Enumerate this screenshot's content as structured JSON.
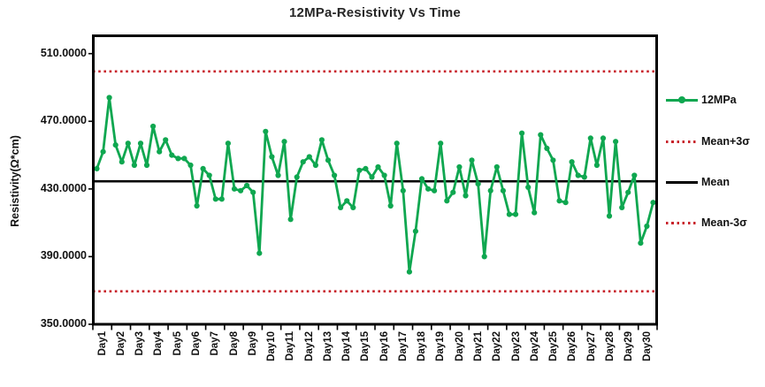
{
  "title": "12MPa-Resistivity Vs Time",
  "y_axis": {
    "label": "Resistivity(Ω*cm)",
    "tick_labels": [
      "510.0000",
      "470.0000",
      "430.0000",
      "390.0000",
      "350.0000"
    ]
  },
  "x_axis": {
    "labels": [
      "Day1",
      "Day2",
      "Day3",
      "Day4",
      "Day5",
      "Day6",
      "Day7",
      "Day8",
      "Day9",
      "Day10",
      "Day11",
      "Day12",
      "Day13",
      "Day14",
      "Day15",
      "Day16",
      "Day17",
      "Day18",
      "Day19",
      "Day20",
      "Day21",
      "Day22",
      "Day23",
      "Day24",
      "Day25",
      "Day26",
      "Day27",
      "Day28",
      "Day29",
      "Day30"
    ]
  },
  "legend": [
    {
      "id": "series",
      "label": "12MPa",
      "type": "line-marker",
      "color": "#0fa750"
    },
    {
      "id": "upper",
      "label": "Mean+3σ",
      "type": "dotted",
      "color": "#c8232b"
    },
    {
      "id": "mean",
      "label": "Mean",
      "type": "solid",
      "color": "#000000"
    },
    {
      "id": "lower",
      "label": "Mean-3σ",
      "type": "dotted",
      "color": "#c8232b"
    }
  ],
  "colors": {
    "series_green": "#0fa750",
    "control_red": "#c8232b",
    "mean_black": "#000000",
    "axis_black": "#000000"
  },
  "chart_data": {
    "type": "line",
    "title": "12MPa-Resistivity Vs Time",
    "xlabel": "",
    "ylabel": "Resistivity(Ω*cm)",
    "ylim": [
      350,
      521
    ],
    "y_ticks": [
      350,
      390,
      430,
      470,
      510
    ],
    "grid": false,
    "legend_position": "right",
    "categories": [
      "Day1",
      "Day2",
      "Day3",
      "Day4",
      "Day5",
      "Day6",
      "Day7",
      "Day8",
      "Day9",
      "Day10",
      "Day11",
      "Day12",
      "Day13",
      "Day14",
      "Day15",
      "Day16",
      "Day17",
      "Day18",
      "Day19",
      "Day20",
      "Day21",
      "Day22",
      "Day23",
      "Day24",
      "Day25",
      "Day26",
      "Day27",
      "Day28",
      "Day29",
      "Day30"
    ],
    "points_per_category": 3,
    "series": [
      {
        "name": "12MPa",
        "color": "#0fa750",
        "marker": "circle",
        "values": [
          442,
          452,
          484,
          456,
          446,
          457,
          444,
          457,
          444,
          467,
          452,
          459,
          450,
          448,
          448,
          444,
          420,
          442,
          438,
          424,
          424,
          457,
          430,
          429,
          432,
          428,
          392,
          464,
          449,
          438,
          458,
          412,
          437,
          446,
          449,
          444,
          459,
          447,
          438,
          419,
          423,
          419,
          441,
          442,
          437,
          443,
          438,
          420,
          457,
          429,
          381,
          405,
          436,
          430,
          429,
          457,
          423,
          428,
          443,
          426,
          447,
          433,
          390,
          429,
          443,
          429,
          415,
          415,
          463,
          431,
          416,
          462,
          454,
          447,
          423,
          422,
          446,
          438,
          437,
          460,
          444,
          460,
          414,
          458,
          419,
          428,
          438,
          398,
          408,
          422
        ]
      }
    ],
    "reference_lines": [
      {
        "id": "upper",
        "label": "Mean+3σ",
        "value": 499.5,
        "style": "dotted",
        "color": "#c8232b"
      },
      {
        "id": "mean",
        "label": "Mean",
        "value": 434.5,
        "style": "solid",
        "color": "#000000"
      },
      {
        "id": "lower",
        "label": "Mean-3σ",
        "value": 369.5,
        "style": "dotted",
        "color": "#c8232b"
      }
    ]
  }
}
